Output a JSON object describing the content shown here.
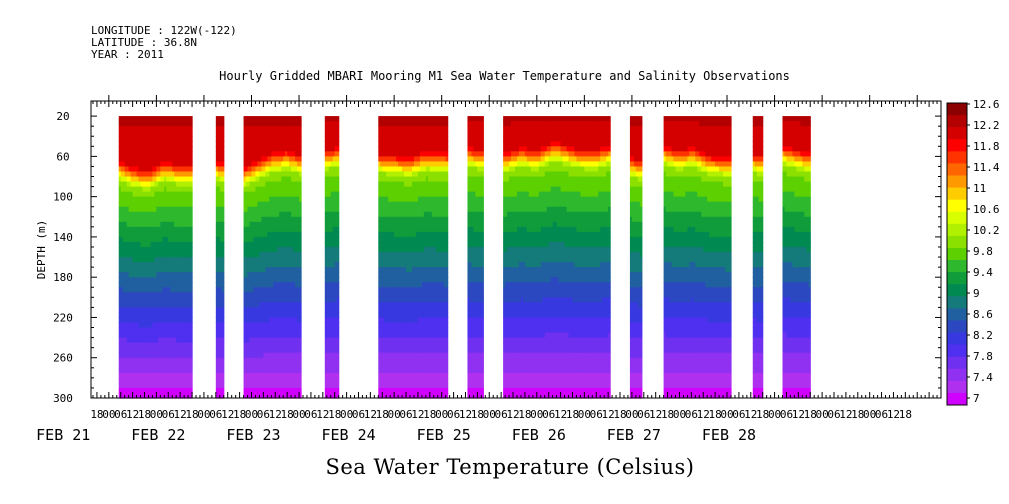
{
  "header": {
    "longitude": "LONGITUDE : 122W(-122)",
    "latitude": "LATITUDE : 36.8N",
    "year": "YEAR : 2011"
  },
  "chart_data": {
    "type": "heatmap",
    "title": "Hourly Gridded MBARI Mooring M1 Sea Water Temperature and Salinity Observations",
    "footer_label": "Sea Water Temperature (Celsius)",
    "ylabel": "DEPTH (m)",
    "ylim": [
      300,
      5
    ],
    "y_ticks": [
      20,
      60,
      100,
      140,
      180,
      220,
      260,
      300
    ],
    "x_range_hours": [
      -9,
      420
    ],
    "x_hour_labels": [
      {
        "h": -6,
        "t": "18"
      },
      {
        "h": 0,
        "t": "00"
      },
      {
        "h": 6,
        "t": "06"
      },
      {
        "h": 12,
        "t": "12"
      },
      {
        "h": 18,
        "t": "18"
      },
      {
        "h": 24,
        "t": "00"
      },
      {
        "h": 30,
        "t": "06"
      },
      {
        "h": 36,
        "t": "12"
      },
      {
        "h": 42,
        "t": "18"
      },
      {
        "h": 48,
        "t": "00"
      },
      {
        "h": 54,
        "t": "06"
      },
      {
        "h": 60,
        "t": "12"
      },
      {
        "h": 66,
        "t": "18"
      },
      {
        "h": 72,
        "t": "00"
      },
      {
        "h": 78,
        "t": "06"
      },
      {
        "h": 84,
        "t": "12"
      },
      {
        "h": 90,
        "t": "18"
      },
      {
        "h": 96,
        "t": "00"
      },
      {
        "h": 102,
        "t": "06"
      },
      {
        "h": 108,
        "t": "12"
      },
      {
        "h": 114,
        "t": "18"
      },
      {
        "h": 120,
        "t": "00"
      },
      {
        "h": 126,
        "t": "06"
      },
      {
        "h": 132,
        "t": "12"
      },
      {
        "h": 138,
        "t": "18"
      },
      {
        "h": 144,
        "t": "00"
      },
      {
        "h": 150,
        "t": "06"
      },
      {
        "h": 156,
        "t": "12"
      },
      {
        "h": 162,
        "t": "18"
      },
      {
        "h": 168,
        "t": "00"
      },
      {
        "h": 174,
        "t": "06"
      },
      {
        "h": 180,
        "t": "12"
      },
      {
        "h": 186,
        "t": "18"
      },
      {
        "h": 192,
        "t": "00"
      },
      {
        "h": 198,
        "t": "06"
      },
      {
        "h": 204,
        "t": "12"
      },
      {
        "h": 210,
        "t": "18"
      },
      {
        "h": 216,
        "t": "00"
      },
      {
        "h": 222,
        "t": "06"
      },
      {
        "h": 228,
        "t": "12"
      },
      {
        "h": 234,
        "t": "18"
      },
      {
        "h": 240,
        "t": "00"
      },
      {
        "h": 246,
        "t": "06"
      },
      {
        "h": 252,
        "t": "12"
      },
      {
        "h": 258,
        "t": "18"
      },
      {
        "h": 264,
        "t": "00"
      },
      {
        "h": 270,
        "t": "06"
      },
      {
        "h": 276,
        "t": "12"
      },
      {
        "h": 282,
        "t": "18"
      },
      {
        "h": 288,
        "t": "00"
      },
      {
        "h": 294,
        "t": "06"
      },
      {
        "h": 300,
        "t": "12"
      },
      {
        "h": 306,
        "t": "18"
      },
      {
        "h": 312,
        "t": "00"
      },
      {
        "h": 318,
        "t": "06"
      },
      {
        "h": 324,
        "t": "12"
      },
      {
        "h": 330,
        "t": "18"
      },
      {
        "h": 336,
        "t": "00"
      },
      {
        "h": 342,
        "t": "06"
      },
      {
        "h": 348,
        "t": "12"
      },
      {
        "h": 354,
        "t": "18"
      },
      {
        "h": 360,
        "t": "00"
      },
      {
        "h": 366,
        "t": "06"
      },
      {
        "h": 372,
        "t": "12"
      },
      {
        "h": 378,
        "t": "18"
      },
      {
        "h": 384,
        "t": "00"
      },
      {
        "h": 390,
        "t": "06"
      },
      {
        "h": 396,
        "t": "12"
      },
      {
        "h": 402,
        "t": "18"
      }
    ],
    "date_labels": [
      {
        "h": -24,
        "t": "FEB 21"
      },
      {
        "h": 24,
        "t": "FEB 22"
      },
      {
        "h": 72,
        "t": "FEB 23"
      },
      {
        "h": 120,
        "t": "FEB 24"
      },
      {
        "h": 168,
        "t": "FEB 25"
      },
      {
        "h": 216,
        "t": "FEB 26"
      },
      {
        "h": 264,
        "t": "FEB 27"
      },
      {
        "h": 312,
        "t": "FEB 28"
      }
    ],
    "data_segments_hours": [
      [
        5,
        42
      ],
      [
        54,
        58
      ],
      [
        68,
        97
      ],
      [
        109,
        116
      ],
      [
        136,
        171
      ],
      [
        181,
        189
      ],
      [
        199,
        253
      ],
      [
        263,
        269
      ],
      [
        280,
        314
      ],
      [
        325,
        330
      ],
      [
        340,
        354
      ]
    ],
    "mixed_layer_depth_m": [
      {
        "h": 5,
        "d": 65
      },
      {
        "h": 12,
        "d": 72
      },
      {
        "h": 20,
        "d": 75
      },
      {
        "h": 28,
        "d": 66
      },
      {
        "h": 36,
        "d": 70
      },
      {
        "h": 42,
        "d": 70
      },
      {
        "h": 54,
        "d": 65
      },
      {
        "h": 58,
        "d": 68
      },
      {
        "h": 68,
        "d": 72
      },
      {
        "h": 75,
        "d": 65
      },
      {
        "h": 82,
        "d": 58
      },
      {
        "h": 90,
        "d": 55
      },
      {
        "h": 97,
        "d": 60
      },
      {
        "h": 109,
        "d": 55
      },
      {
        "h": 116,
        "d": 52
      },
      {
        "h": 136,
        "d": 58
      },
      {
        "h": 144,
        "d": 60
      },
      {
        "h": 152,
        "d": 62
      },
      {
        "h": 160,
        "d": 56
      },
      {
        "h": 171,
        "d": 58
      },
      {
        "h": 181,
        "d": 52
      },
      {
        "h": 189,
        "d": 55
      },
      {
        "h": 199,
        "d": 58
      },
      {
        "h": 208,
        "d": 52
      },
      {
        "h": 216,
        "d": 55
      },
      {
        "h": 225,
        "d": 46
      },
      {
        "h": 235,
        "d": 53
      },
      {
        "h": 245,
        "d": 55
      },
      {
        "h": 253,
        "d": 50
      },
      {
        "h": 263,
        "d": 62
      },
      {
        "h": 269,
        "d": 65
      },
      {
        "h": 280,
        "d": 50
      },
      {
        "h": 287,
        "d": 55
      },
      {
        "h": 295,
        "d": 52
      },
      {
        "h": 303,
        "d": 60
      },
      {
        "h": 314,
        "d": 62
      },
      {
        "h": 325,
        "d": 58
      },
      {
        "h": 330,
        "d": 60
      },
      {
        "h": 340,
        "d": 50
      },
      {
        "h": 347,
        "d": 54
      },
      {
        "h": 354,
        "d": 58
      }
    ],
    "colorbar": {
      "labels": [
        "12.6",
        "12.2",
        "11.8",
        "11.4",
        "11",
        "10.6",
        "10.2",
        "9.8",
        "9.4",
        "9",
        "8.6",
        "8.2",
        "7.8",
        "7.4",
        "7"
      ],
      "min": 7,
      "max": 12.8,
      "colors": [
        "#8b0000",
        "#b30000",
        "#d40000",
        "#ff0000",
        "#ff3300",
        "#ff6600",
        "#ff9900",
        "#ffcc00",
        "#ffff00",
        "#d8ff00",
        "#b0f000",
        "#8ce000",
        "#5cd000",
        "#2eb82e",
        "#109c3a",
        "#008a52",
        "#157a7a",
        "#2060a0",
        "#2c48c0",
        "#3838e0",
        "#5030f0",
        "#7030f0",
        "#9030f0",
        "#b030f0",
        "#d000ff"
      ]
    }
  }
}
